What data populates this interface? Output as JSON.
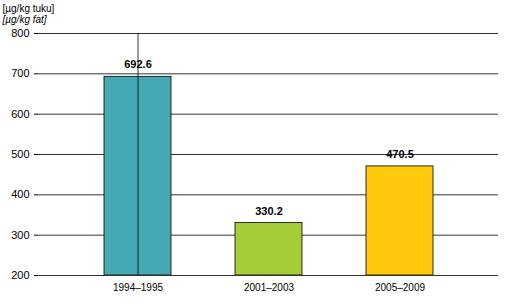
{
  "chart_data": {
    "type": "bar",
    "ylabel": [
      "[µg/kg tuku]",
      "[µg/kg fat]"
    ],
    "categories": [
      "1994–1995",
      "2001–2003",
      "2005–2009"
    ],
    "values": [
      692.6,
      330.2,
      470.5
    ],
    "colors": [
      "#45a9b3",
      "#a5cd39",
      "#ffc90e"
    ],
    "ylim": [
      200,
      800
    ],
    "yticks": [
      200,
      300,
      400,
      500,
      600,
      700,
      800
    ],
    "grid": true,
    "data_labels": true
  }
}
